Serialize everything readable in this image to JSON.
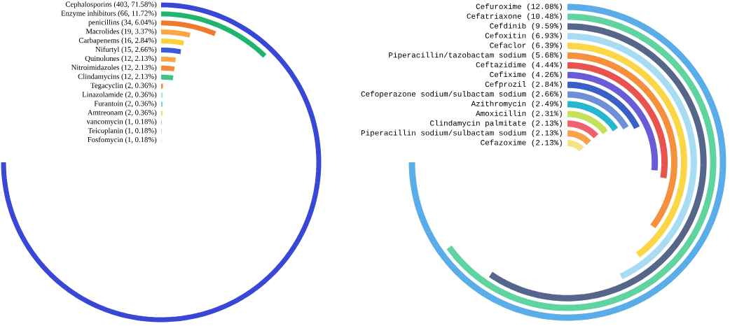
{
  "chart_data": [
    {
      "type": "other",
      "categories": [
        "Cephalosporins",
        "Enzyme inhibitors",
        "penicillins",
        "Macrolides",
        "Carbapenems",
        "Nifurtyl",
        "Quinolones",
        "Nitroimidazoles",
        "Clindamycins",
        "Tegacyclin",
        "Linazolamide",
        "Furantoin",
        "Amtreonam",
        "vancomycin",
        "Teicoplanin",
        "Fosfomycin"
      ],
      "values": [
        403,
        66,
        34,
        19,
        16,
        15,
        12,
        12,
        12,
        2,
        2,
        2,
        2,
        1,
        1,
        1
      ],
      "value_labels": [
        "(403, 71.58%)",
        "(66, 11.72%)",
        "(34, 6.04%)",
        "(19, 3.37%)",
        "(16, 2.84%)",
        "(15, 2.66%)",
        "(12, 2.13%)",
        "(12, 2.13%)",
        "(12, 2.13%)",
        "(2, 0.36%)",
        "(2, 0.36%)",
        "(2, 0.36%)",
        "(2, 0.36%)",
        "(1, 0.18%)",
        "(1, 0.18%)",
        "(1, 0.18%)"
      ],
      "colors": [
        "#3847d6",
        "#1fb56e",
        "#f07a2a",
        "#f9a73e",
        "#fbd23a",
        "#3b5bdb",
        "#f9a84a",
        "#f4893a",
        "#3ec47f",
        "#f4893a",
        "#a7d8f0",
        "#7dc6f0",
        "#f6d24a",
        "#8aa6e0",
        "#8aa6e0",
        "#a7d8f0"
      ]
    },
    {
      "type": "other",
      "categories": [
        "Cefuroxime",
        "Cefatriaxone",
        "Cefdinib",
        "Cefoxitin",
        "Cefaclor",
        "Piperacillin/tazobactam sodium",
        "Ceftazidime",
        "Cefixime",
        "Cefprozil",
        "Cefoperazone sodium/sulbactam sodium",
        "Azithromycin",
        "Amoxicillin",
        "Clindamycin palmitate",
        "Piperacillin sodium/sulbactam sodium",
        "Cefazoxime"
      ],
      "values": [
        12.08,
        10.48,
        9.59,
        6.93,
        6.39,
        5.68,
        4.44,
        4.26,
        2.84,
        2.66,
        2.49,
        2.31,
        2.13,
        2.13,
        2.13
      ],
      "value_labels": [
        "(12.08%)",
        "(10.48%)",
        "(9.59%)",
        "(6.93%)",
        "(6.39%)",
        "(5.68%)",
        "(4.44%)",
        "(4.26%)",
        "(2.84%)",
        "(2.66%)",
        "(2.49%)",
        "(2.31%)",
        "(2.13%)",
        "(2.13%)",
        "(2.13%)"
      ],
      "colors": [
        "#5aade8",
        "#5fd3a0",
        "#56658a",
        "#a8dcf5",
        "#fcd647",
        "#f7903c",
        "#e8524f",
        "#6a5bd6",
        "#3a5fc8",
        "#6f8fd8",
        "#26b7d0",
        "#c6e05a",
        "#f0616b",
        "#f7a34a",
        "#fbe08a"
      ]
    }
  ]
}
